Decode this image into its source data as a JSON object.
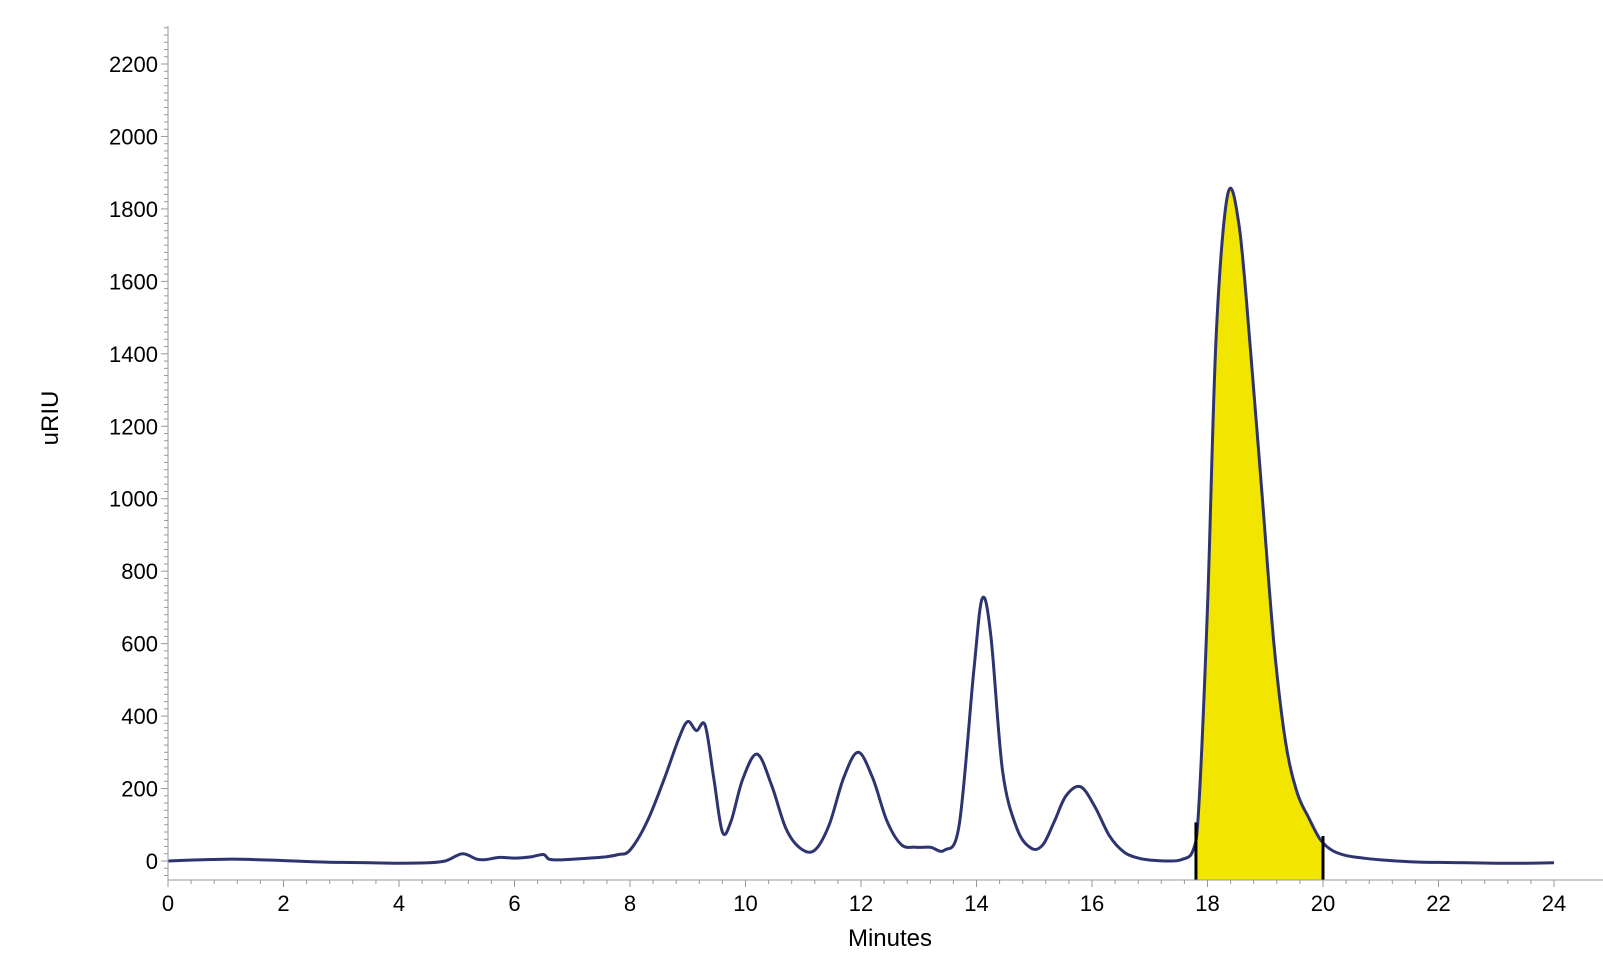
{
  "chart_data": {
    "type": "line",
    "xlabel": "Minutes",
    "ylabel": "uRIU",
    "xlim": [
      0,
      24
    ],
    "ylim": [
      -50,
      2300
    ],
    "xticks": [
      0,
      2,
      4,
      6,
      8,
      10,
      12,
      14,
      16,
      18,
      20,
      22,
      24
    ],
    "yticks": [
      0,
      200,
      400,
      600,
      800,
      1000,
      1200,
      1400,
      1600,
      1800,
      2000,
      2200
    ],
    "grid": false,
    "colors": {
      "line": "#2e3470",
      "fill": "#f2e600",
      "marker": "#000000"
    },
    "series": [
      {
        "x": [
          0,
          0.5,
          1,
          1.5,
          2,
          2.5,
          3,
          3.5,
          4,
          4.5,
          4.8,
          5.0,
          5.1,
          5.2,
          5.35,
          5.5,
          5.75,
          6.0,
          6.3,
          6.5,
          6.6,
          6.8,
          7.0,
          7.3,
          7.6,
          7.8,
          8.0,
          8.3,
          8.6,
          8.85,
          9.0,
          9.15,
          9.3,
          9.45,
          9.6,
          9.75,
          9.95,
          10.2,
          10.45,
          10.7,
          10.95,
          11.2,
          11.45,
          11.7,
          11.95,
          12.2,
          12.45,
          12.7,
          12.95,
          13.2,
          13.45,
          13.7,
          13.95,
          14.1,
          14.25,
          14.45,
          14.7,
          14.95,
          15.15,
          15.35,
          15.55,
          15.8,
          16.05,
          16.3,
          16.55,
          16.8,
          17.05,
          17.3,
          17.55,
          17.75,
          17.85,
          18.0,
          18.15,
          18.35,
          18.55,
          18.75,
          18.95,
          19.15,
          19.35,
          19.55,
          19.75,
          19.95,
          20.15,
          20.4,
          20.7,
          21.0,
          21.5,
          22.0,
          22.5,
          23.0,
          23.5,
          24.0
        ],
        "y": [
          0,
          3,
          5,
          4,
          1,
          -2,
          -4,
          -5,
          -6,
          -5,
          0,
          15,
          20,
          16,
          5,
          4,
          10,
          8,
          12,
          18,
          5,
          3,
          5,
          8,
          12,
          18,
          30,
          110,
          230,
          340,
          385,
          360,
          375,
          230,
          80,
          110,
          225,
          295,
          210,
          90,
          35,
          30,
          100,
          230,
          300,
          230,
          110,
          45,
          38,
          38,
          30,
          100,
          520,
          725,
          620,
          250,
          90,
          35,
          45,
          110,
          180,
          205,
          150,
          70,
          25,
          8,
          2,
          0,
          4,
          30,
          150,
          700,
          1450,
          1840,
          1750,
          1400,
          1000,
          600,
          330,
          190,
          120,
          60,
          30,
          15,
          8,
          3,
          -2,
          -4,
          -5,
          -6,
          -6,
          -5
        ]
      }
    ],
    "integration_window": [
      17.8,
      20.0
    ]
  }
}
